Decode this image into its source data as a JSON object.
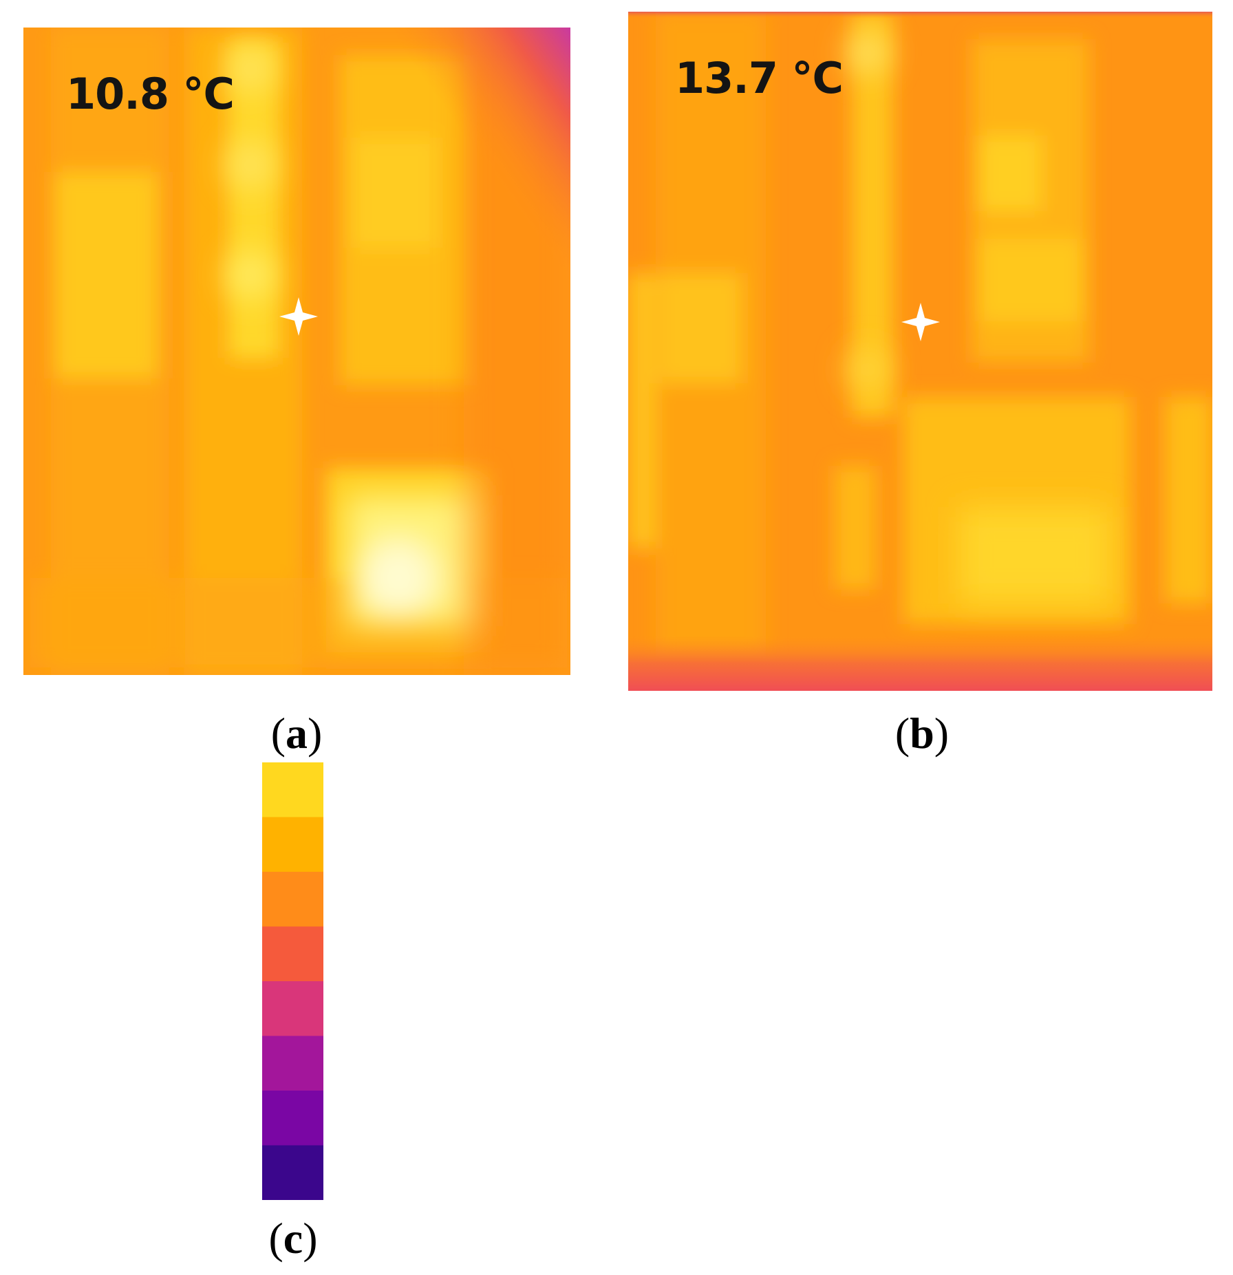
{
  "panels": [
    {
      "id": "a",
      "readout": "10.8 °C",
      "label_open": "(",
      "label_letter": "a",
      "label_close": ")"
    },
    {
      "id": "b",
      "readout": "13.7 °C",
      "label_open": "(",
      "label_letter": "b",
      "label_close": ")"
    }
  ],
  "colorbar": {
    "label_open": "(",
    "label_letter": "c",
    "label_close": ")",
    "stops": [
      "#ffd81f",
      "#ffb200",
      "#ff8c19",
      "#f55a3c",
      "#d9367a",
      "#a3169b",
      "#7a06a4",
      "#3b068c"
    ]
  },
  "palette": {
    "hot_white": "#fffbd0",
    "yellow": "#ffd21a",
    "orange": "#ff9a14",
    "red": "#f25c46",
    "magenta": "#c93aa0"
  }
}
